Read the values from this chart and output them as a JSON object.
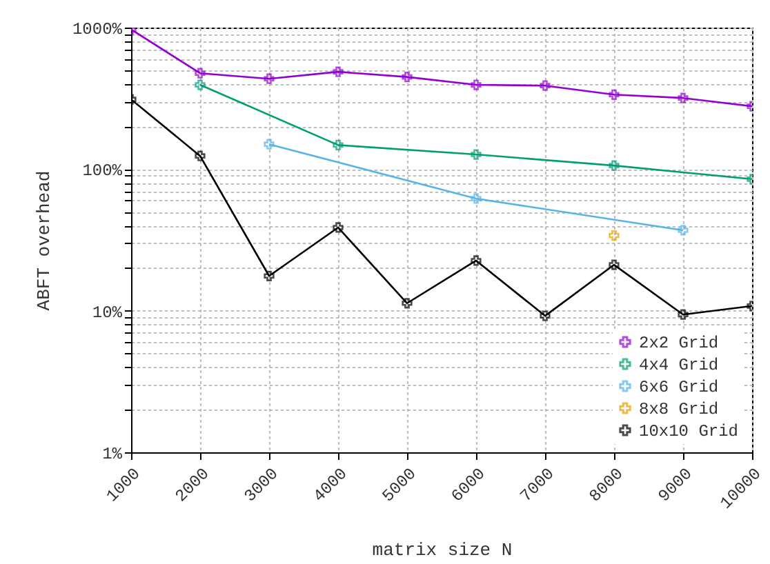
{
  "chart_data": {
    "type": "line",
    "xlabel": "matrix size N",
    "ylabel": "ABFT overhead",
    "x": [
      1000,
      2000,
      3000,
      4000,
      5000,
      6000,
      7000,
      8000,
      9000,
      10000
    ],
    "series": [
      {
        "name": "2x2 Grid",
        "color": "#9400d3",
        "values": [
          970,
          476,
          435,
          487,
          448,
          394,
          389,
          336,
          318,
          278
        ]
      },
      {
        "name": "4x4 Grid",
        "color": "#009e73",
        "values": [
          null,
          394,
          null,
          148,
          null,
          127,
          null,
          106,
          null,
          85
        ]
      },
      {
        "name": "6x6 Grid",
        "color": "#56b4e9",
        "values": [
          null,
          null,
          150,
          null,
          null,
          62,
          null,
          null,
          37,
          null
        ]
      },
      {
        "name": "8x8 Grid",
        "color": "#e69f00",
        "values": [
          null,
          null,
          null,
          null,
          null,
          null,
          null,
          34,
          null,
          null
        ]
      },
      {
        "name": "10x10 Grid",
        "color": "#000000",
        "values": [
          311,
          124,
          17.6,
          38.7,
          11.3,
          22.6,
          9.2,
          21.1,
          9.4,
          10.8
        ]
      }
    ],
    "log": true,
    "xlim": [
      1000,
      10000
    ],
    "ylim": [
      1,
      1000
    ],
    "xticks": [
      1000,
      2000,
      3000,
      4000,
      5000,
      6000,
      7000,
      8000,
      9000,
      10000
    ],
    "yticks": [
      {
        "value": 1,
        "label": "1%"
      },
      {
        "value": 2,
        "label": null
      },
      {
        "value": 3,
        "label": null
      },
      {
        "value": 4,
        "label": null
      },
      {
        "value": 5,
        "label": null
      },
      {
        "value": 6,
        "label": null
      },
      {
        "value": 7,
        "label": null
      },
      {
        "value": 8,
        "label": null
      },
      {
        "value": 9,
        "label": null
      },
      {
        "value": 10,
        "label": "10%"
      },
      {
        "value": 20,
        "label": null
      },
      {
        "value": 30,
        "label": null
      },
      {
        "value": 40,
        "label": null
      },
      {
        "value": 50,
        "label": null
      },
      {
        "value": 60,
        "label": null
      },
      {
        "value": 70,
        "label": null
      },
      {
        "value": 80,
        "label": null
      },
      {
        "value": 90,
        "label": null
      },
      {
        "value": 100,
        "label": "100%"
      },
      {
        "value": 200,
        "label": null
      },
      {
        "value": 300,
        "label": null
      },
      {
        "value": 400,
        "label": null
      },
      {
        "value": 500,
        "label": null
      },
      {
        "value": 600,
        "label": null
      },
      {
        "value": 700,
        "label": null
      },
      {
        "value": 800,
        "label": null
      },
      {
        "value": 900,
        "label": null
      },
      {
        "value": 1000,
        "label": "1000%"
      }
    ],
    "grid": true,
    "legend": "bottom right",
    "marker": "cross"
  }
}
